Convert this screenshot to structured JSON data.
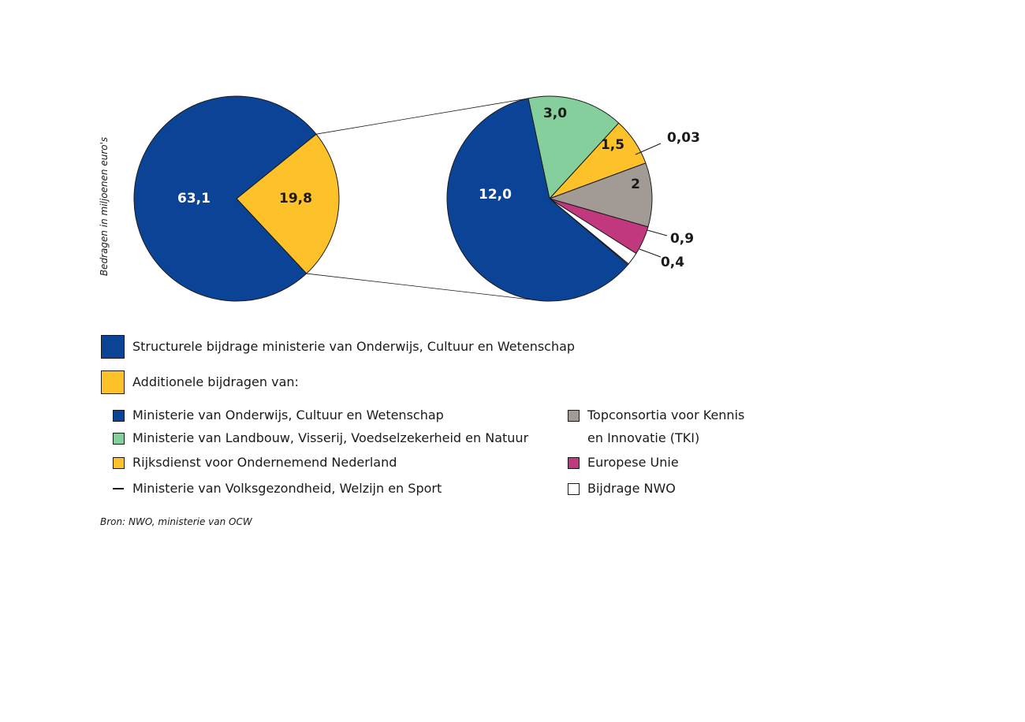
{
  "chart_data": [
    {
      "type": "pie",
      "labels": [
        "Structurele bijdrage ministerie van Onderwijs, Cultuur en Wetenschap",
        "Additionele bijdragen van:"
      ],
      "values": [
        63.1,
        19.8
      ],
      "value_labels": [
        "63,1",
        "19,8"
      ],
      "colors": [
        "#0b4496",
        "#fdc12a"
      ],
      "ylabel": "Bedragen in miljoenen euro's"
    },
    {
      "type": "pie",
      "labels": [
        "Ministerie van Onderwijs, Cultuur en Wetenschap",
        "Ministerie van Landbouw, Visserij, Voedselzekerheid en Natuur",
        "Rijksdienst voor Ondernemend Nederland",
        "Ministerie van Volksgezondheid, Welzijn en Sport",
        "Topconsortia voor Kennis en Innovatie (TKI)",
        "Europese Unie",
        "Bijdrage NWO"
      ],
      "values": [
        12.0,
        3.0,
        1.5,
        0.03,
        2,
        0.9,
        0.4
      ],
      "value_labels": [
        "12,0",
        "3,0",
        "1,5",
        "0,03",
        "2",
        "0,9",
        "0,4"
      ],
      "colors": [
        "#0b4496",
        "#84cf9c",
        "#fdc12a",
        "#ffffff",
        "#a29b95",
        "#c2387e",
        "#ffffff"
      ]
    }
  ],
  "legend": {
    "main": [
      {
        "label": "Structurele bijdrage ministerie van Onderwijs, Cultuur en Wetenschap",
        "color": "#0b4496"
      },
      {
        "label": "Additionele bijdragen van:",
        "color": "#fdc12a"
      }
    ],
    "left": [
      {
        "label": "Ministerie van Onderwijs, Cultuur en Wetenschap",
        "color": "#0b4496"
      },
      {
        "label": "Ministerie van Landbouw, Visserij, Voedselzekerheid en Natuur",
        "color": "#84cf9c"
      },
      {
        "label": "Rijksdienst voor Ondernemend Nederland",
        "color": "#fdc12a"
      },
      {
        "label": "Ministerie van Volksgezondheid, Welzijn en Sport",
        "color": "line"
      }
    ],
    "right": [
      {
        "label": "Topconsortia voor Kennis",
        "label2": "en Innovatie (TKI)",
        "color": "#a29b95"
      },
      {
        "label": "Europese Unie",
        "color": "#c2387e"
      },
      {
        "label": "Bijdrage NWO",
        "color": "#ffffff"
      }
    ]
  },
  "source": "Bron: NWO, ministerie van OCW"
}
